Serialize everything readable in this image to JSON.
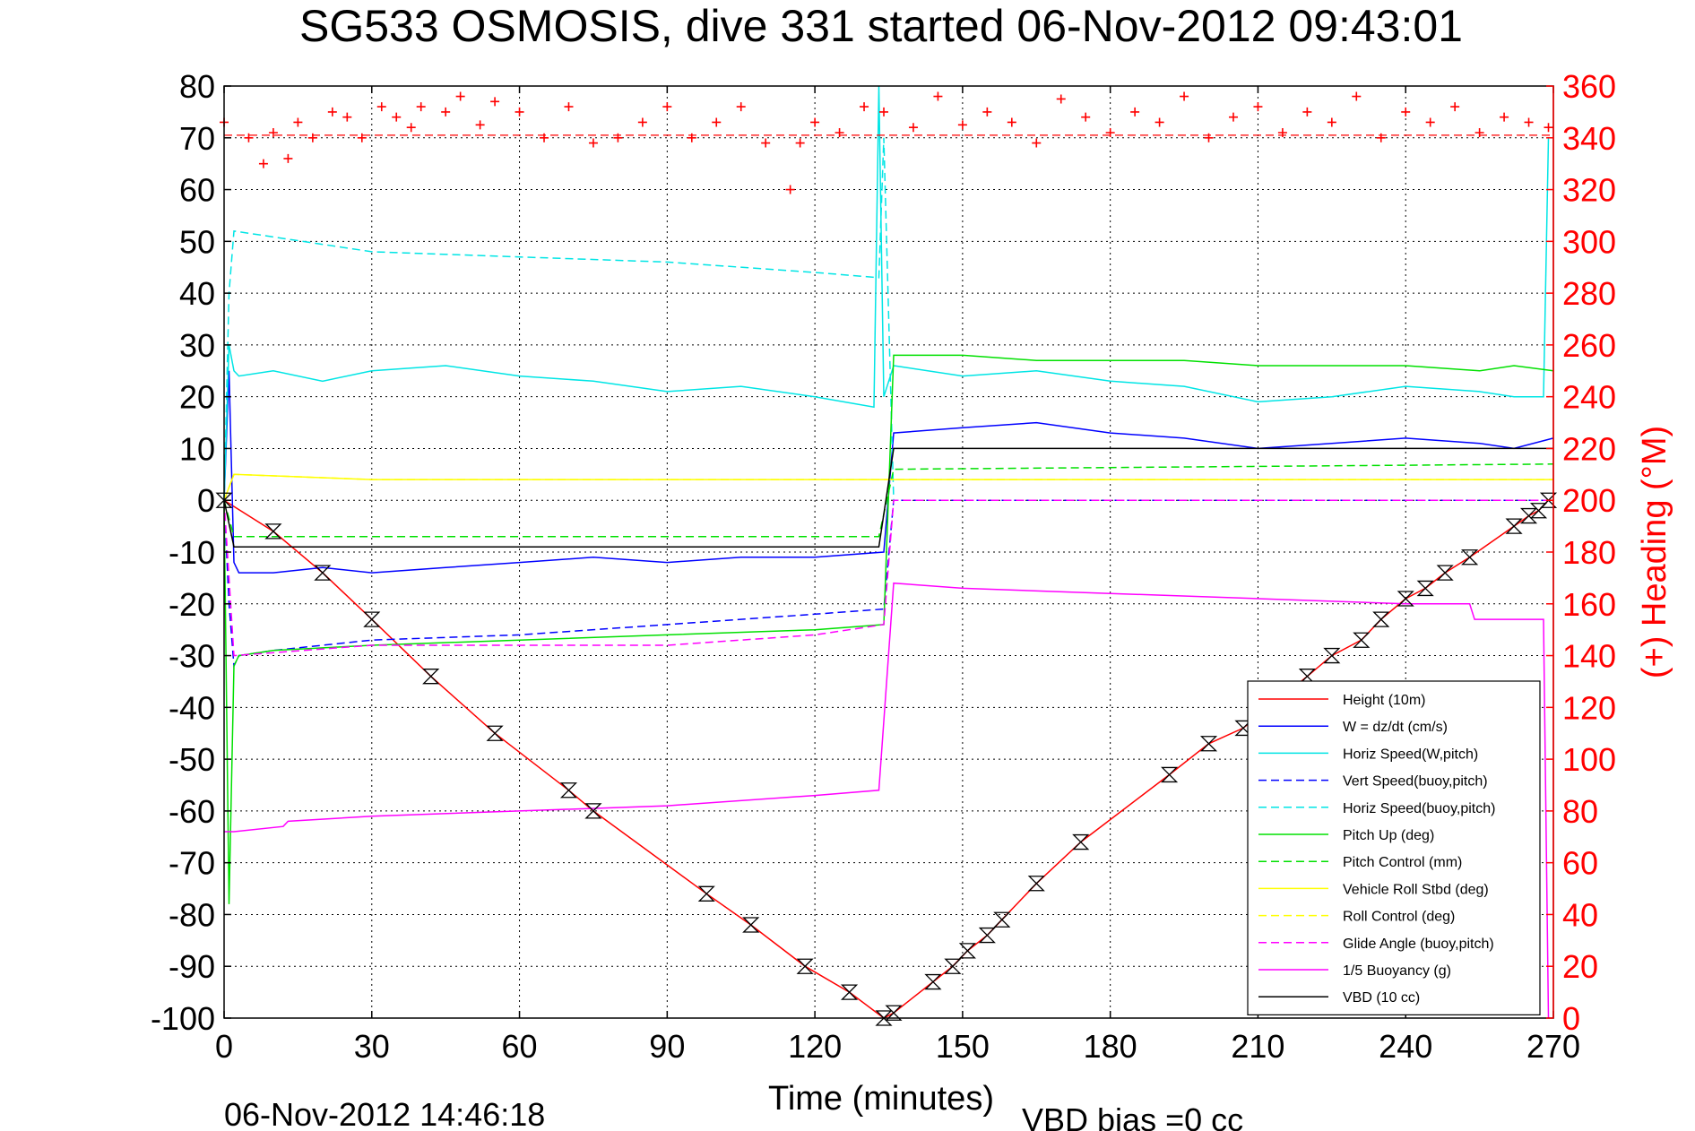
{
  "chart_data": {
    "type": "line",
    "title": "SG533 OSMOSIS, dive 331 started 06-Nov-2012 09:43:01",
    "xlabel": "Time (minutes)",
    "ylabel": "",
    "y2label": "(+) Heading (°M)",
    "xlim": [
      0,
      270
    ],
    "ylim": [
      -100,
      80
    ],
    "y2lim": [
      0,
      360
    ],
    "xticks": [
      0,
      30,
      60,
      90,
      120,
      150,
      180,
      210,
      240,
      270
    ],
    "yticks": [
      -100,
      -90,
      -80,
      -70,
      -60,
      -50,
      -40,
      -30,
      -20,
      -10,
      0,
      10,
      20,
      30,
      40,
      50,
      60,
      70,
      80
    ],
    "y2ticks": [
      0,
      20,
      40,
      60,
      80,
      100,
      120,
      140,
      160,
      180,
      200,
      220,
      240,
      260,
      280,
      300,
      320,
      340,
      360
    ],
    "grid": true,
    "legend_position": "bottom-right",
    "footer_date": "06-Nov-2012 14:46:18",
    "footer_bias": "VBD bias =0 cc",
    "colors": {
      "axis": "#000000",
      "grid": "#000000",
      "heading": "#ff0000"
    },
    "series": [
      {
        "name": "Height (10m)",
        "color": "#ff0000",
        "dash": false,
        "x": [
          0,
          10,
          20,
          30,
          42,
          55,
          70,
          75,
          98,
          107,
          118,
          127,
          134,
          136,
          144,
          148,
          151,
          155,
          158,
          165,
          174,
          192,
          200,
          207,
          220,
          225,
          231,
          235,
          240,
          244,
          248,
          253,
          262,
          265,
          267,
          269
        ],
        "y": [
          0,
          -6,
          -14,
          -23,
          -34,
          -45,
          -56,
          -60,
          -76,
          -82,
          -90,
          -95,
          -100,
          -99,
          -93,
          -90,
          -87,
          -84,
          -81,
          -74,
          -66,
          -53,
          -47,
          -44,
          -34,
          -30,
          -27,
          -23,
          -19,
          -17,
          -14,
          -11,
          -5,
          -3,
          -2,
          0
        ]
      },
      {
        "name": "W = dz/dt (cm/s)",
        "color": "#0000ff",
        "dash": false,
        "x": [
          0,
          1,
          2,
          3,
          10,
          20,
          30,
          45,
          60,
          75,
          90,
          105,
          120,
          134,
          136,
          150,
          165,
          180,
          195,
          210,
          225,
          240,
          255,
          262,
          270
        ],
        "y": [
          0,
          25,
          -12,
          -14,
          -14,
          -13,
          -14,
          -13,
          -12,
          -11,
          -12,
          -11,
          -11,
          -10,
          13,
          14,
          15,
          13,
          12,
          10,
          11,
          12,
          11,
          10,
          12
        ]
      },
      {
        "name": "Horiz Speed(W,pitch)",
        "color": "#00e5e5",
        "dash": false,
        "x": [
          0,
          1,
          2,
          3,
          10,
          20,
          30,
          45,
          60,
          75,
          90,
          105,
          120,
          132,
          133,
          134,
          136,
          150,
          165,
          180,
          195,
          210,
          225,
          240,
          255,
          262,
          268,
          269
        ],
        "y": [
          0,
          30,
          25,
          24,
          25,
          23,
          25,
          26,
          24,
          23,
          21,
          22,
          20,
          18,
          80,
          20,
          26,
          24,
          25,
          23,
          22,
          19,
          20,
          22,
          21,
          20,
          20,
          70
        ]
      },
      {
        "name": "Vert Speed(buoy,pitch)",
        "color": "#0000ff",
        "dash": true,
        "x": [
          0,
          1,
          2,
          3,
          10,
          30,
          60,
          90,
          120,
          134,
          136,
          270
        ],
        "y": [
          0,
          -20,
          -32,
          -30,
          -29,
          -27,
          -26,
          -24,
          -22,
          -21,
          0,
          0
        ]
      },
      {
        "name": "Horiz Speed(buoy,pitch)",
        "color": "#00e5e5",
        "dash": true,
        "x": [
          0,
          1,
          2,
          30,
          60,
          90,
          120,
          133,
          134,
          136
        ],
        "y": [
          0,
          40,
          52,
          48,
          47,
          46,
          44,
          43,
          70,
          0
        ]
      },
      {
        "name": "Pitch Up (deg)",
        "color": "#00e000",
        "dash": false,
        "x": [
          0,
          1,
          2,
          3,
          10,
          30,
          60,
          90,
          120,
          134,
          136,
          150,
          165,
          180,
          195,
          210,
          225,
          240,
          255,
          262,
          270
        ],
        "y": [
          0,
          -78,
          -32,
          -30,
          -29,
          -28,
          -27,
          -26,
          -25,
          -24,
          28,
          28,
          27,
          27,
          27,
          26,
          26,
          26,
          25,
          26,
          25
        ]
      },
      {
        "name": "Pitch Control (mm)",
        "color": "#00e000",
        "dash": true,
        "x": [
          0,
          2,
          133,
          136,
          270
        ],
        "y": [
          0,
          -7,
          -7,
          6,
          7
        ]
      },
      {
        "name": "Vehicle Roll Stbd (deg)",
        "color": "#ffff00",
        "dash": false,
        "x": [
          0,
          2,
          30,
          60,
          90,
          120,
          134,
          136,
          150,
          180,
          210,
          240,
          270
        ],
        "y": [
          0,
          5,
          4,
          4,
          4,
          4,
          4,
          4,
          4,
          4,
          4,
          4,
          4
        ]
      },
      {
        "name": "Roll Control (deg)",
        "color": "#ffff00",
        "dash": true,
        "x": [
          0,
          2,
          30,
          60,
          90,
          120,
          134,
          136,
          270
        ],
        "y": [
          0,
          5,
          4,
          4,
          4,
          4,
          4,
          4,
          4
        ]
      },
      {
        "name": "Glide Angle (buoy,pitch)",
        "color": "#ff00ff",
        "dash": true,
        "x": [
          0,
          2,
          30,
          60,
          90,
          120,
          134,
          136,
          270
        ],
        "y": [
          0,
          -30,
          -28,
          -28,
          -28,
          -26,
          -24,
          0,
          0
        ]
      },
      {
        "name": "1/5 Buoyancy (g)",
        "color": "#ff00ff",
        "dash": false,
        "x": [
          0,
          2,
          12,
          13,
          30,
          60,
          90,
          120,
          133,
          136,
          150,
          180,
          210,
          240,
          253,
          254,
          268,
          269
        ],
        "y": [
          -64,
          -64,
          -63,
          -62,
          -61,
          -60,
          -59,
          -57,
          -56,
          -16,
          -17,
          -18,
          -19,
          -20,
          -20,
          -23,
          -23,
          -100
        ]
      },
      {
        "name": "VBD (10 cc)",
        "color": "#000000",
        "dash": false,
        "x": [
          0,
          2,
          133,
          136,
          270
        ],
        "y": [
          0,
          -9,
          -9,
          10,
          10
        ]
      }
    ],
    "heading": {
      "name": "(+) Heading (°M)",
      "color": "#ff0000",
      "axis": "right",
      "mean": 341,
      "x": [
        0,
        5,
        8,
        10,
        13,
        15,
        18,
        22,
        25,
        28,
        32,
        35,
        38,
        40,
        45,
        48,
        52,
        55,
        60,
        65,
        70,
        75,
        80,
        85,
        90,
        95,
        100,
        105,
        110,
        115,
        117,
        120,
        125,
        130,
        134,
        140,
        145,
        150,
        155,
        160,
        165,
        170,
        175,
        180,
        185,
        190,
        195,
        200,
        205,
        210,
        215,
        220,
        225,
        230,
        235,
        240,
        245,
        250,
        255,
        260,
        265,
        269
      ],
      "y": [
        346,
        340,
        330,
        342,
        332,
        346,
        340,
        350,
        348,
        340,
        352,
        348,
        344,
        352,
        350,
        356,
        345,
        354,
        350,
        340,
        352,
        338,
        340,
        346,
        352,
        340,
        346,
        352,
        338,
        320,
        338,
        346,
        342,
        352,
        350,
        344,
        356,
        345,
        350,
        346,
        338,
        355,
        348,
        342,
        350,
        346,
        356,
        340,
        348,
        352,
        342,
        350,
        346,
        356,
        340,
        350,
        346,
        352,
        342,
        348,
        346,
        344
      ]
    }
  }
}
